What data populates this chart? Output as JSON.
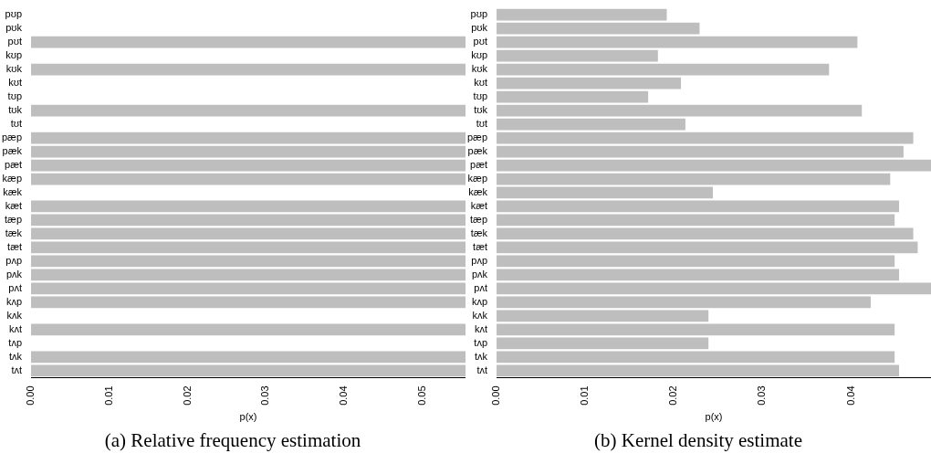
{
  "chart_data": [
    {
      "type": "bar",
      "orientation": "horizontal",
      "title": "(a) Relative frequency estimation",
      "xlabel": "p(x)",
      "categories": [
        "pʊp",
        "pʊk",
        "pʊt",
        "kʊp",
        "kʊk",
        "kʊt",
        "tʊp",
        "tʊk",
        "tʊt",
        "pæp",
        "pæk",
        "pæt",
        "kæp",
        "kæk",
        "kæt",
        "tæp",
        "tæk",
        "tæt",
        "pʌp",
        "pʌk",
        "pʌt",
        "kʌp",
        "kʌk",
        "kʌt",
        "tʌp",
        "tʌk",
        "tʌt"
      ],
      "values": [
        0,
        0,
        0.0555,
        0,
        0.0555,
        0,
        0,
        0.0555,
        0,
        0.0555,
        0.0555,
        0.0555,
        0.0555,
        0,
        0.0555,
        0.0555,
        0.0555,
        0.0555,
        0.0555,
        0.0555,
        0.0555,
        0.0555,
        0,
        0.0555,
        0,
        0.0555,
        0.0555
      ],
      "color": "#bebebe",
      "xlim": [
        0,
        0.0555
      ],
      "xticks": [
        {
          "value": 0,
          "label": "0.00"
        },
        {
          "value": 0.01,
          "label": "0.01"
        },
        {
          "value": 0.02,
          "label": "0.02"
        },
        {
          "value": 0.03,
          "label": "0.03"
        },
        {
          "value": 0.04,
          "label": "0.04"
        },
        {
          "value": 0.05,
          "label": "0.05"
        }
      ],
      "grid": false,
      "legend": false
    },
    {
      "type": "bar",
      "orientation": "horizontal",
      "title": "(b) Kernel density estimate",
      "xlabel": "p(x)",
      "categories": [
        "pʊp",
        "pʊk",
        "pʊt",
        "kʊp",
        "kʊk",
        "kʊt",
        "tʊp",
        "tʊk",
        "tʊt",
        "pæp",
        "pæk",
        "pæt",
        "kæp",
        "kæk",
        "kæt",
        "tæp",
        "tæk",
        "tæt",
        "pʌp",
        "pʌk",
        "pʌt",
        "kʌp",
        "kʌk",
        "kʌt",
        "tʌp",
        "tʌk",
        "tʌt"
      ],
      "values": [
        0.0192,
        0.0229,
        0.0407,
        0.0182,
        0.0375,
        0.0208,
        0.0171,
        0.0412,
        0.0213,
        0.047,
        0.0459,
        0.049,
        0.0444,
        0.0244,
        0.0454,
        0.0449,
        0.047,
        0.0475,
        0.0449,
        0.0454,
        0.049,
        0.0422,
        0.0239,
        0.0449,
        0.0239,
        0.0449,
        0.0454
      ],
      "color": "#bebebe",
      "xlim": [
        0,
        0.049
      ],
      "xticks": [
        {
          "value": 0,
          "label": "0.00"
        },
        {
          "value": 0.01,
          "label": "0.01"
        },
        {
          "value": 0.02,
          "label": "0.02"
        },
        {
          "value": 0.03,
          "label": "0.03"
        },
        {
          "value": 0.04,
          "label": "0.04"
        }
      ],
      "grid": false,
      "legend": false
    }
  ]
}
